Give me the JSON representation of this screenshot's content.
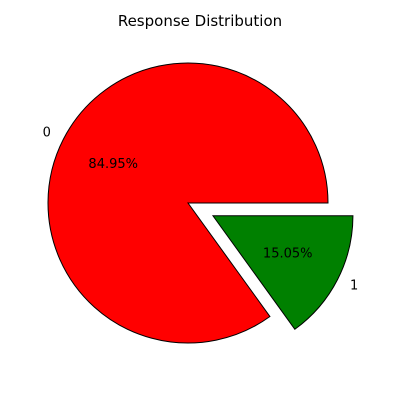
{
  "chart_data": {
    "type": "pie",
    "title": "Response Distribution",
    "categories": [
      "0",
      "1"
    ],
    "values": [
      84.95,
      15.05
    ],
    "percent_labels": [
      "84.95%",
      "15.05%"
    ],
    "colors": [
      "#ff0000",
      "#008000"
    ],
    "explode": [
      0,
      0.2
    ],
    "start_angle_deg": 0,
    "direction": "counterclockwise",
    "legend": "none"
  }
}
